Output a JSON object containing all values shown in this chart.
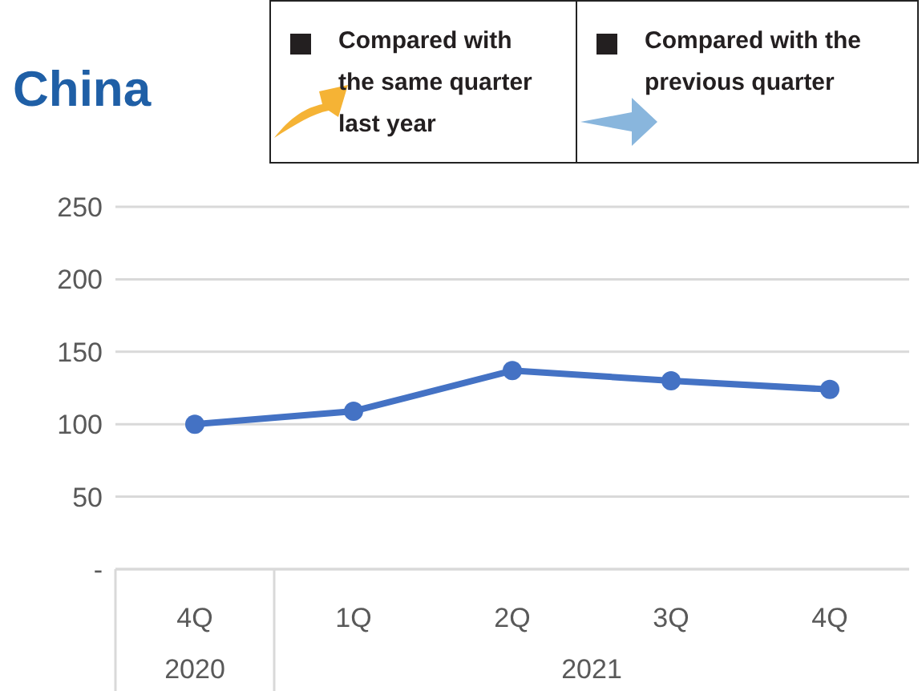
{
  "chart_data": {
    "type": "line",
    "title": "China",
    "categories": [
      "4Q",
      "1Q",
      "2Q",
      "3Q",
      "4Q"
    ],
    "series": [
      {
        "color": "#4472c4",
        "values": [
          100,
          109,
          137,
          130,
          124
        ]
      }
    ],
    "ylim": [
      0,
      250
    ],
    "yticks": [
      {
        "value": 0,
        "label": "-"
      },
      50,
      100,
      150,
      200,
      250
    ],
    "grid": "y",
    "marker": "circle",
    "annotations": [
      "Compared with the same quarter last year",
      "Compared with the previous quarter",
      "2020",
      "2021"
    ]
  }
}
